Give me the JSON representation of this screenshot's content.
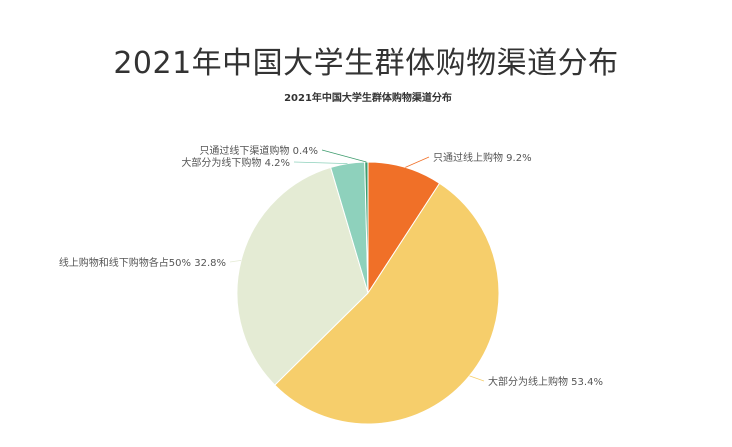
{
  "page": {
    "title": "2021年中国大学生群体购物渠道分布"
  },
  "chart_data": {
    "type": "pie",
    "title": "2021年中国大学生群体购物渠道分布",
    "slices": [
      {
        "label": "只通过线上购物",
        "value": 9.2,
        "display": "只通过线上购物 9.2%",
        "color": "#F07028"
      },
      {
        "label": "大部分为线上购物",
        "value": 53.4,
        "display": "大部分为线上购物 53.4%",
        "color": "#F6CE6B"
      },
      {
        "label": "线上购物和线下购物各占50%",
        "value": 32.8,
        "display": "线上购物和线下购物各占50% 32.8%",
        "color": "#E4EBD4"
      },
      {
        "label": "大部分为线下购物",
        "value": 4.2,
        "display": "大部分为线下购物 4.2%",
        "color": "#8ED1BC"
      },
      {
        "label": "只通过线下渠道购物",
        "value": 0.4,
        "display": "只通过线下渠道购物 0.4%",
        "color": "#3E9C6E"
      }
    ],
    "start_angle_deg": 0,
    "direction": "clockwise",
    "legend": "none"
  }
}
